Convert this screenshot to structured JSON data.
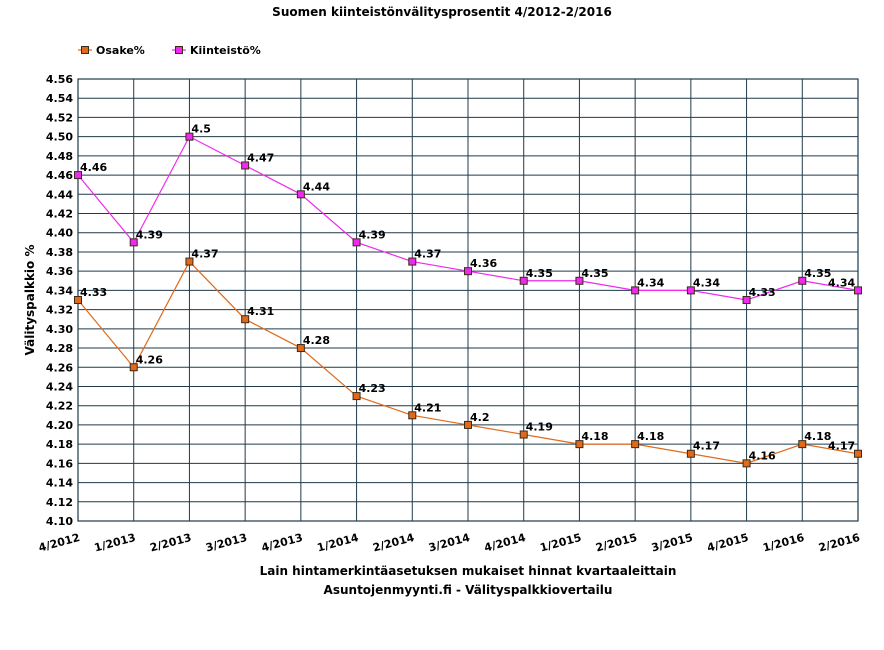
{
  "chart_data": {
    "type": "line",
    "title": "Suomen kiinteistönvälitysprosentit 4/2012-2/2016",
    "xlabel": "Lain hintamerkintäasetuksen mukaiset hinnat kvartaaleittain",
    "source": "Asuntojenmyynti.fi - Välityspalkkiovertailu",
    "ylabel": "Välityspalkkio %",
    "categories": [
      "4/2012",
      "1/2013",
      "2/2013",
      "3/2013",
      "4/2013",
      "1/2014",
      "2/2014",
      "3/2014",
      "4/2014",
      "1/2015",
      "2/2015",
      "3/2015",
      "4/2015",
      "1/2016",
      "2/2016"
    ],
    "ylim": [
      4.1,
      4.56
    ],
    "ystep": 0.02,
    "grid": true,
    "legend": "top-left",
    "series": [
      {
        "name": "Osake%",
        "color": "#e06a1a",
        "values": [
          4.33,
          4.26,
          4.37,
          4.31,
          4.28,
          4.23,
          4.21,
          4.2,
          4.19,
          4.18,
          4.18,
          4.17,
          4.16,
          4.18,
          4.17
        ],
        "labels": [
          "4.33",
          "4.26",
          "4.37",
          "4.31",
          "4.28",
          "4.23",
          "4.21",
          "4.2",
          "4.19",
          "4.18",
          "4.18",
          "4.17",
          "4.16",
          "4.18",
          "4.17"
        ]
      },
      {
        "name": "Kiinteistö%",
        "color": "#ee2aee",
        "values": [
          4.46,
          4.39,
          4.5,
          4.47,
          4.44,
          4.39,
          4.37,
          4.36,
          4.35,
          4.35,
          4.34,
          4.34,
          4.33,
          4.35,
          4.34
        ],
        "labels": [
          "4.46",
          "4.39",
          "4.5",
          "4.47",
          "4.44",
          "4.39",
          "4.37",
          "4.36",
          "4.35",
          "4.35",
          "4.34",
          "4.34",
          "4.33",
          "4.35",
          "4.34"
        ]
      }
    ]
  }
}
